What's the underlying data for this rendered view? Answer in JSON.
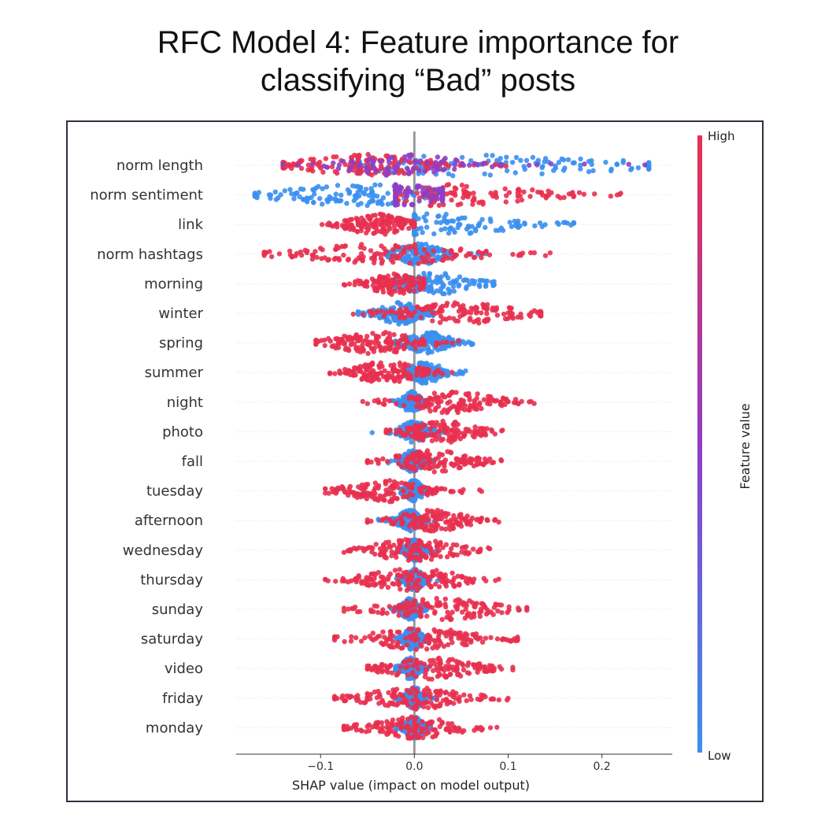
{
  "title_lines": [
    "RFC Model 4: Feature importance for",
    "classifying “Bad” posts"
  ],
  "chart_data": {
    "type": "scatter",
    "subtype": "shap-beeswarm",
    "features": [
      "norm length",
      "norm sentiment",
      "link",
      "norm hashtags",
      "morning",
      "winter",
      "spring",
      "summer",
      "night",
      "photo",
      "fall",
      "tuesday",
      "afternoon",
      "wednesday",
      "thursday",
      "sunday",
      "saturday",
      "video",
      "friday",
      "monday"
    ],
    "xlabel": "SHAP value (impact on model output)",
    "xlim": [
      -0.19,
      0.275
    ],
    "xticks": [
      -0.1,
      0.0,
      0.1,
      0.2
    ],
    "xtick_labels": [
      "−0.1",
      "0.0",
      "0.1",
      "0.2"
    ],
    "colorbar": {
      "label": "Feature value",
      "high": "High",
      "low": "Low",
      "high_color": "#e8304f",
      "low_color": "#3b8ff0"
    },
    "distributions": [
      {
        "feature": "norm length",
        "low": {
          "min": -0.06,
          "max": 0.25,
          "center": 0.03,
          "width": 0.16
        },
        "high": {
          "min": -0.14,
          "max": 0.1,
          "center": -0.05,
          "width": 0.06
        }
      },
      {
        "feature": "norm sentiment",
        "low": {
          "min": -0.17,
          "max": 0.03,
          "center": -0.06,
          "width": 0.07
        },
        "high": {
          "min": -0.02,
          "max": 0.22,
          "center": 0.03,
          "width": 0.08
        }
      },
      {
        "feature": "link",
        "low": {
          "min": 0.0,
          "max": 0.17,
          "center": 0.02,
          "width": 0.07
        },
        "high": {
          "min": -0.11,
          "max": 0.0,
          "center": -0.04,
          "width": 0.025
        }
      },
      {
        "feature": "norm hashtags",
        "low": {
          "min": -0.03,
          "max": 0.08,
          "center": 0.005,
          "width": 0.02
        },
        "high": {
          "min": -0.16,
          "max": 0.15,
          "center": -0.03,
          "width": 0.07
        }
      },
      {
        "feature": "morning",
        "low": {
          "min": -0.02,
          "max": 0.085,
          "center": 0.02,
          "width": 0.035
        },
        "high": {
          "min": -0.075,
          "max": 0.01,
          "center": -0.02,
          "width": 0.025
        }
      },
      {
        "feature": "winter",
        "low": {
          "min": -0.06,
          "max": 0.02,
          "center": -0.015,
          "width": 0.02
        },
        "high": {
          "min": -0.07,
          "max": 0.135,
          "center": 0.05,
          "width": 0.05
        }
      },
      {
        "feature": "spring",
        "low": {
          "min": -0.02,
          "max": 0.065,
          "center": 0.015,
          "width": 0.02
        },
        "high": {
          "min": -0.105,
          "max": 0.06,
          "center": -0.04,
          "width": 0.04
        }
      },
      {
        "feature": "summer",
        "low": {
          "min": -0.01,
          "max": 0.06,
          "center": 0.012,
          "width": 0.015
        },
        "high": {
          "min": -0.09,
          "max": 0.06,
          "center": -0.03,
          "width": 0.03
        }
      },
      {
        "feature": "night",
        "low": {
          "min": -0.03,
          "max": 0.02,
          "center": -0.003,
          "width": 0.008
        },
        "high": {
          "min": -0.055,
          "max": 0.13,
          "center": 0.04,
          "width": 0.04
        }
      },
      {
        "feature": "photo",
        "low": {
          "min": -0.045,
          "max": 0.04,
          "center": 0.0,
          "width": 0.012
        },
        "high": {
          "min": -0.03,
          "max": 0.1,
          "center": 0.03,
          "width": 0.03
        }
      },
      {
        "feature": "fall",
        "low": {
          "min": -0.03,
          "max": 0.03,
          "center": -0.002,
          "width": 0.01
        },
        "high": {
          "min": -0.05,
          "max": 0.1,
          "center": 0.02,
          "width": 0.035
        }
      },
      {
        "feature": "tuesday",
        "low": {
          "min": -0.02,
          "max": 0.02,
          "center": 0.0,
          "width": 0.008
        },
        "high": {
          "min": -0.095,
          "max": 0.075,
          "center": -0.03,
          "width": 0.035
        }
      },
      {
        "feature": "afternoon",
        "low": {
          "min": -0.04,
          "max": 0.03,
          "center": -0.005,
          "width": 0.01
        },
        "high": {
          "min": -0.05,
          "max": 0.09,
          "center": 0.02,
          "width": 0.03
        }
      },
      {
        "feature": "wednesday",
        "low": {
          "min": -0.02,
          "max": 0.025,
          "center": 0.0,
          "width": 0.008
        },
        "high": {
          "min": -0.075,
          "max": 0.085,
          "center": 0.0,
          "width": 0.04
        }
      },
      {
        "feature": "thursday",
        "low": {
          "min": -0.02,
          "max": 0.025,
          "center": 0.0,
          "width": 0.008
        },
        "high": {
          "min": -0.095,
          "max": 0.09,
          "center": 0.0,
          "width": 0.045
        }
      },
      {
        "feature": "sunday",
        "low": {
          "min": -0.025,
          "max": 0.015,
          "center": -0.005,
          "width": 0.008
        },
        "high": {
          "min": -0.075,
          "max": 0.12,
          "center": 0.03,
          "width": 0.05
        }
      },
      {
        "feature": "saturday",
        "low": {
          "min": -0.02,
          "max": 0.02,
          "center": -0.002,
          "width": 0.008
        },
        "high": {
          "min": -0.085,
          "max": 0.11,
          "center": 0.01,
          "width": 0.05
        }
      },
      {
        "feature": "video",
        "low": {
          "min": -0.02,
          "max": 0.02,
          "center": -0.004,
          "width": 0.008
        },
        "high": {
          "min": -0.05,
          "max": 0.105,
          "center": 0.02,
          "width": 0.04
        }
      },
      {
        "feature": "friday",
        "low": {
          "min": -0.02,
          "max": 0.025,
          "center": 0.0,
          "width": 0.008
        },
        "high": {
          "min": -0.085,
          "max": 0.1,
          "center": 0.0,
          "width": 0.045
        }
      },
      {
        "feature": "monday",
        "low": {
          "min": -0.02,
          "max": 0.025,
          "center": 0.0,
          "width": 0.008
        },
        "high": {
          "min": -0.075,
          "max": 0.095,
          "center": 0.0,
          "width": 0.04
        }
      }
    ]
  }
}
